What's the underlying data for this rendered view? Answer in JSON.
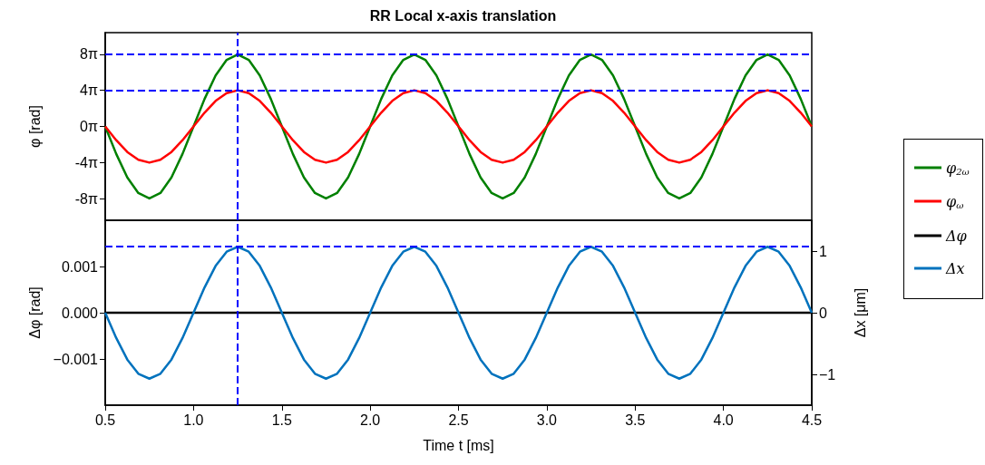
{
  "chart_data": [
    {
      "type": "line",
      "title": "RR Local x-axis translation",
      "ylabel": "φ [rad]",
      "legend": "right",
      "tick_labels": "y",
      "xlim": [
        0.5,
        4.5
      ],
      "ylim": [
        -32.7,
        32.7
      ],
      "yticks": [
        {
          "value": -25.13,
          "label": "-8π"
        },
        {
          "value": -12.57,
          "label": "-4π"
        },
        {
          "value": 0,
          "label": "0π"
        },
        {
          "value": 12.57,
          "label": "4π"
        },
        {
          "value": 25.13,
          "label": "8π"
        }
      ],
      "x": [
        0.5,
        0.5625,
        0.625,
        0.6875,
        0.75,
        0.8125,
        0.875,
        0.9375,
        1,
        1.0625,
        1.125,
        1.1875,
        1.25,
        1.3125,
        1.375,
        1.4375,
        1.5,
        1.5625,
        1.625,
        1.6875,
        1.75,
        1.8125,
        1.875,
        1.9375,
        2,
        2.0625,
        2.125,
        2.1875,
        2.25,
        2.3125,
        2.375,
        2.4375,
        2.5,
        2.5625,
        2.625,
        2.6875,
        2.75,
        2.8125,
        2.875,
        2.9375,
        3,
        3.0625,
        3.125,
        3.1875,
        3.25,
        3.3125,
        3.375,
        3.4375,
        3.5,
        3.5625,
        3.625,
        3.6875,
        3.75,
        3.8125,
        3.875,
        3.9375,
        4,
        4.0625,
        4.125,
        4.1875,
        4.25,
        4.3125,
        4.375,
        4.4375,
        4.5
      ],
      "series": [
        {
          "name": "φ$_{2ω}$",
          "color": "#008000",
          "values": [
            0,
            -9.6,
            -17.8,
            -23.2,
            -25.1,
            -23.2,
            -17.8,
            -9.6,
            0,
            9.6,
            17.8,
            23.2,
            25.1,
            23.2,
            17.8,
            9.6,
            0,
            -9.6,
            -17.8,
            -23.2,
            -25.1,
            -23.2,
            -17.8,
            -9.6,
            0,
            9.6,
            17.8,
            23.2,
            25.1,
            23.2,
            17.8,
            9.6,
            0,
            -9.6,
            -17.8,
            -23.2,
            -25.1,
            -23.2,
            -17.8,
            -9.6,
            0,
            9.6,
            17.8,
            23.2,
            25.1,
            23.2,
            17.8,
            9.6,
            0,
            -9.6,
            -17.8,
            -23.2,
            -25.1,
            -23.2,
            -17.8,
            -9.6,
            0,
            9.6,
            17.8,
            23.2,
            25.1,
            23.2,
            17.8,
            9.6,
            0
          ]
        },
        {
          "name": "φ$_{ω}$",
          "color": "#ff0000",
          "values": [
            0,
            -4.8,
            -8.9,
            -11.6,
            -12.6,
            -11.6,
            -8.9,
            -4.8,
            0,
            4.8,
            8.9,
            11.6,
            12.6,
            11.6,
            8.9,
            4.8,
            0,
            -4.8,
            -8.9,
            -11.6,
            -12.6,
            -11.6,
            -8.9,
            -4.8,
            0,
            4.8,
            8.9,
            11.6,
            12.6,
            11.6,
            8.9,
            4.8,
            0,
            -4.8,
            -8.9,
            -11.6,
            -12.6,
            -11.6,
            -8.9,
            -4.8,
            0,
            4.8,
            8.9,
            11.6,
            12.6,
            11.6,
            8.9,
            4.8,
            0,
            -4.8,
            -8.9,
            -11.6,
            -12.6,
            -11.6,
            -8.9,
            -4.8,
            0,
            4.8,
            8.9,
            11.6,
            12.6,
            11.6,
            8.9,
            4.8,
            0
          ]
        }
      ],
      "ref_lines": [
        {
          "axis": "x",
          "value": 1.25,
          "color": "#0000ff",
          "line_style": "dashed"
        },
        {
          "axis": "y",
          "value": 25.13,
          "color": "#0000ff",
          "line_style": "dashed"
        },
        {
          "axis": "y",
          "value": 12.57,
          "color": "#0000ff",
          "line_style": "dashed"
        }
      ]
    },
    {
      "type": "line",
      "xlabel": "Time t [ms]",
      "ylabel": "Δφ [rad]",
      "y2label": "Δx [μm]",
      "legend": "right",
      "xlim": [
        0.5,
        4.5
      ],
      "xticks": [
        0.5,
        {
          "value": 1,
          "label": "1.0"
        },
        1.5,
        {
          "value": 2,
          "label": "2.0"
        },
        2.5,
        {
          "value": 3,
          "label": "3.0"
        },
        3.5,
        {
          "value": 4,
          "label": "4.0"
        },
        4.5
      ],
      "ylim": [
        -0.002,
        0.002
      ],
      "yticks": [
        {
          "value": -0.001,
          "label": "−0.001"
        },
        {
          "value": 0,
          "label": "0.000"
        },
        0.001
      ],
      "y2lim": [
        -1.5,
        1.5
      ],
      "y2ticks": [
        {
          "value": -1,
          "label": "−1"
        },
        0,
        1
      ],
      "x": [
        0.5,
        0.5625,
        0.625,
        0.6875,
        0.75,
        0.8125,
        0.875,
        0.9375,
        1,
        1.0625,
        1.125,
        1.1875,
        1.25,
        1.3125,
        1.375,
        1.4375,
        1.5,
        1.5625,
        1.625,
        1.6875,
        1.75,
        1.8125,
        1.875,
        1.9375,
        2,
        2.0625,
        2.125,
        2.1875,
        2.25,
        2.3125,
        2.375,
        2.4375,
        2.5,
        2.5625,
        2.625,
        2.6875,
        2.75,
        2.8125,
        2.875,
        2.9375,
        3,
        3.0625,
        3.125,
        3.1875,
        3.25,
        3.3125,
        3.375,
        3.4375,
        3.5,
        3.5625,
        3.625,
        3.6875,
        3.75,
        3.8125,
        3.875,
        3.9375,
        4,
        4.0625,
        4.125,
        4.1875,
        4.25,
        4.3125,
        4.375,
        4.4375,
        4.5
      ],
      "series": [
        {
          "name": "Δφ",
          "color": "#000000",
          "values": [
            0,
            0,
            0,
            0,
            0,
            0,
            0,
            0,
            0,
            0,
            0,
            0,
            0,
            0,
            0,
            0,
            0,
            0,
            0,
            0,
            0,
            0,
            0,
            0,
            0,
            0,
            0,
            0,
            0,
            0,
            0,
            0,
            0,
            0,
            0,
            0,
            0,
            0,
            0,
            0,
            0,
            0,
            0,
            0,
            0,
            0,
            0,
            0,
            0,
            0,
            0,
            0,
            0,
            0,
            0,
            0,
            0,
            0,
            0,
            0,
            0,
            0,
            0,
            0,
            0
          ]
        },
        {
          "name": "Δx",
          "color": "#0072bd",
          "axis": "y2",
          "values": [
            0,
            -0.41,
            -0.76,
            -0.99,
            -1.07,
            -0.99,
            -0.76,
            -0.41,
            0,
            0.41,
            0.76,
            0.99,
            1.07,
            0.99,
            0.76,
            0.41,
            0,
            -0.41,
            -0.76,
            -0.99,
            -1.07,
            -0.99,
            -0.76,
            -0.41,
            0,
            0.41,
            0.76,
            0.99,
            1.07,
            0.99,
            0.76,
            0.41,
            0,
            -0.41,
            -0.76,
            -0.99,
            -1.07,
            -0.99,
            -0.76,
            -0.41,
            0,
            0.41,
            0.76,
            0.99,
            1.07,
            0.99,
            0.76,
            0.41,
            0,
            -0.41,
            -0.76,
            -0.99,
            -1.07,
            -0.99,
            -0.76,
            -0.41,
            0,
            0.41,
            0.76,
            0.99,
            1.07,
            0.99,
            0.76,
            0.41,
            0
          ]
        }
      ],
      "ref_lines": [
        {
          "axis": "x",
          "value": 1.25,
          "color": "#0000ff",
          "line_style": "dashed"
        },
        {
          "axis": "y2",
          "value": 1.07,
          "color": "#0000ff",
          "line_style": "dashed"
        }
      ]
    }
  ]
}
